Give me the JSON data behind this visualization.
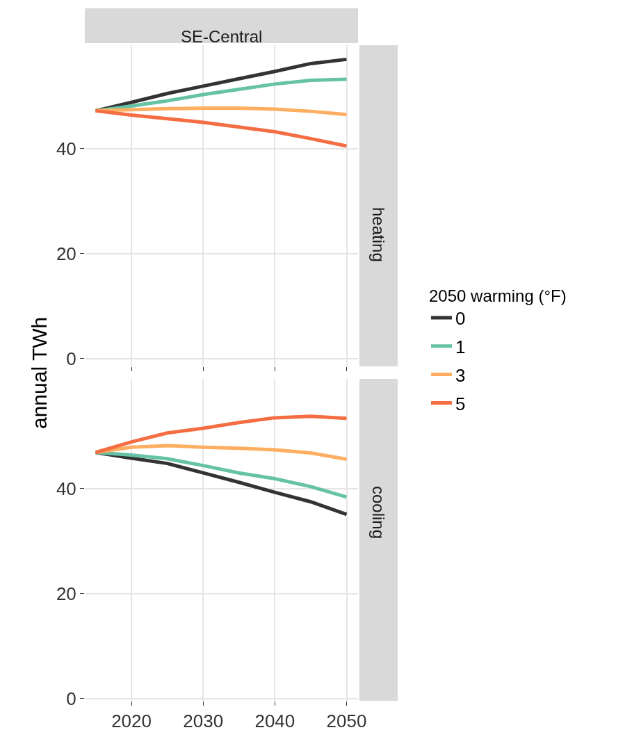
{
  "chart_data": [
    {
      "type": "line",
      "title": "SE-Central",
      "annotations": [
        "heating"
      ],
      "ylabel": "annual TWh",
      "legend_title": "2050 warming (°F)",
      "legend": "right",
      "grid": true,
      "tick_labels": "y",
      "line_style": "solid",
      "marker": "none",
      "x": [
        2015,
        2020,
        2025,
        2030,
        2035,
        2040,
        2045,
        2050
      ],
      "xlim": [
        2013.5,
        2051.6
      ],
      "xticks": [
        2020,
        2030,
        2040,
        2050
      ],
      "ylim": [
        -1.5,
        59.7
      ],
      "yticks": [
        0,
        20,
        40
      ],
      "series": [
        {
          "name": "0",
          "color": "#333333",
          "values": [
            47.2,
            48.8,
            50.5,
            51.9,
            53.3,
            54.7,
            56.2,
            57.0
          ]
        },
        {
          "name": "1",
          "color": "#66c2a5",
          "values": [
            47.2,
            48.1,
            49.1,
            50.3,
            51.3,
            52.3,
            53.0,
            53.2
          ]
        },
        {
          "name": "3",
          "color": "#fdae61",
          "values": [
            47.2,
            47.4,
            47.6,
            47.7,
            47.7,
            47.5,
            47.1,
            46.5
          ]
        },
        {
          "name": "5",
          "color": "#f46d43",
          "values": [
            47.2,
            46.4,
            45.7,
            45.0,
            44.1,
            43.2,
            41.9,
            40.5
          ]
        }
      ]
    },
    {
      "type": "line",
      "annotations": [
        "cooling"
      ],
      "grid": true,
      "line_style": "solid",
      "marker": "none",
      "legend": "right",
      "x": [
        2015,
        2020,
        2025,
        2030,
        2035,
        2040,
        2045,
        2050
      ],
      "xlim": [
        2013.5,
        2051.6
      ],
      "xticks": [
        2020,
        2030,
        2040,
        2050
      ],
      "ylim": [
        -0.4,
        60.9
      ],
      "yticks": [
        0,
        20,
        40
      ],
      "series": [
        {
          "name": "0",
          "color": "#333333",
          "values": [
            46.9,
            45.8,
            44.8,
            43.0,
            41.2,
            39.3,
            37.5,
            35.1
          ]
        },
        {
          "name": "1",
          "color": "#66c2a5",
          "values": [
            46.9,
            46.4,
            45.7,
            44.4,
            43.0,
            41.9,
            40.4,
            38.4
          ]
        },
        {
          "name": "3",
          "color": "#fdae61",
          "values": [
            46.9,
            47.9,
            48.2,
            47.9,
            47.7,
            47.4,
            46.8,
            45.6
          ]
        },
        {
          "name": "5",
          "color": "#f46d43",
          "values": [
            46.9,
            48.9,
            50.6,
            51.5,
            52.6,
            53.5,
            53.8,
            53.4
          ]
        }
      ]
    }
  ]
}
